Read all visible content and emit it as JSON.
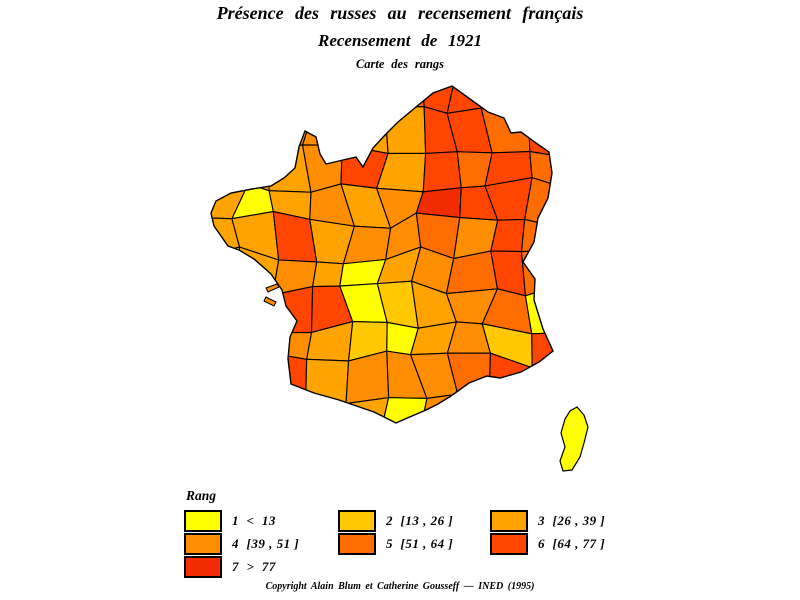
{
  "titles": {
    "line1": "Présence des russes au recensement français",
    "line2": "Recensement de 1921",
    "line3": "Carte des rangs"
  },
  "legend": {
    "title": "Rang",
    "items": [
      {
        "rank": 1,
        "label": "1  <  13",
        "color": "#FFFF00",
        "col": 0
      },
      {
        "rank": 2,
        "label": "2  [13 , 26 ]",
        "color": "#FFC800",
        "col": 1
      },
      {
        "rank": 3,
        "label": "3  [26 , 39 ]",
        "color": "#FFA300",
        "col": 2
      },
      {
        "rank": 4,
        "label": "4  [39 , 51 ]",
        "color": "#FF8D00",
        "col": 0
      },
      {
        "rank": 5,
        "label": "5  [51 , 64 ]",
        "color": "#FF6D00",
        "col": 1
      },
      {
        "rank": 6,
        "label": "6  [64 , 77 ]",
        "color": "#FF4500",
        "col": 2
      },
      {
        "rank": 7,
        "label": "7  >  77",
        "color": "#F22C00",
        "col": 0
      }
    ]
  },
  "map": {
    "region": "France",
    "unit": "départements",
    "classes": 7,
    "grid_ranks": [
      [
        5,
        5,
        5,
        5,
        5,
        5,
        6,
        6,
        5,
        5
      ],
      [
        4,
        4,
        4,
        4,
        3,
        3,
        6,
        6,
        5,
        6
      ],
      [
        3,
        3,
        3,
        4,
        6,
        3,
        6,
        5,
        6,
        5
      ],
      [
        3,
        1,
        3,
        4,
        3,
        4,
        7,
        6,
        6,
        5
      ],
      [
        3,
        3,
        6,
        3,
        4,
        4,
        5,
        4,
        6,
        5
      ],
      [
        1,
        3,
        4,
        3,
        1,
        3,
        4,
        5,
        6,
        5
      ],
      [
        4,
        4,
        6,
        6,
        1,
        2,
        3,
        4,
        5,
        1
      ],
      [
        3,
        4,
        4,
        3,
        2,
        1,
        3,
        4,
        2,
        6
      ],
      [
        4,
        5,
        6,
        3,
        4,
        4,
        4,
        5,
        6,
        5
      ],
      [
        4,
        4,
        5,
        4,
        3,
        1,
        4,
        4,
        4,
        4
      ]
    ],
    "corsica_rank": 1,
    "island_rank": 4
  },
  "footer": {
    "text": "Copyright Alain Blum et Catherine Gousseff  —  INED (1995)"
  }
}
